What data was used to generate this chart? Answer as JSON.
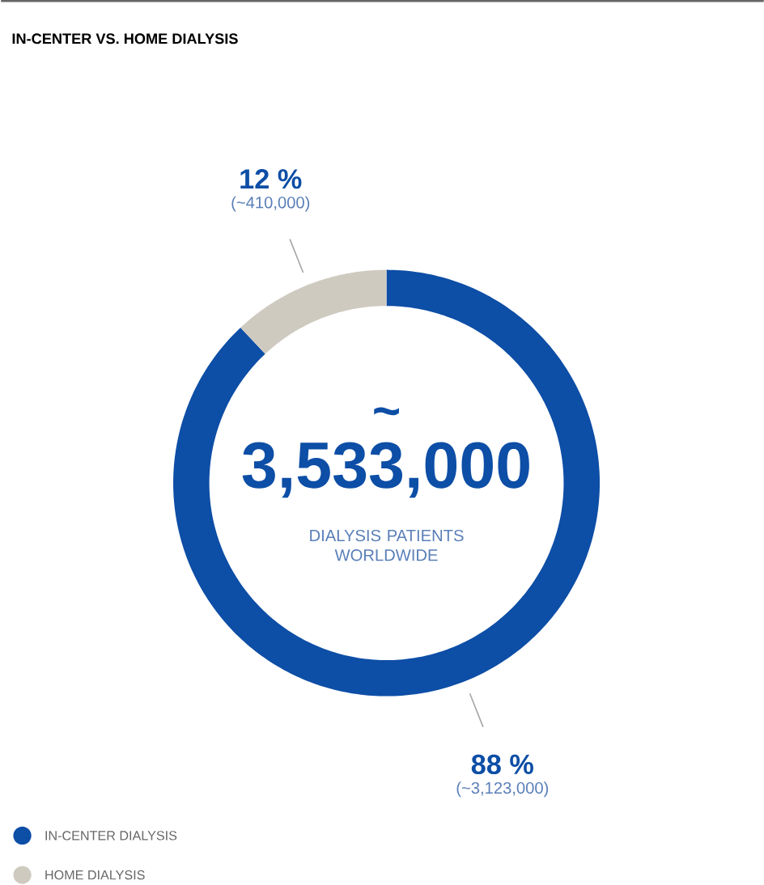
{
  "chart_data": {
    "type": "donut",
    "title": "IN-CENTER VS. HOME DIALYSIS",
    "categories": [
      "IN-CENTER DIALYSIS",
      "HOME DIALYSIS"
    ],
    "values": [
      88,
      12
    ],
    "colors": [
      "#0d4ea6",
      "#cfcac0"
    ],
    "value_labels": [
      "88 %",
      "12 %"
    ],
    "annotations": [
      "(~3,123,000)",
      "(~410,000)",
      "~",
      "3,533,000",
      "DIALYSIS PATIENTS WORLDWIDE"
    ],
    "legend": "bottom left"
  }
}
